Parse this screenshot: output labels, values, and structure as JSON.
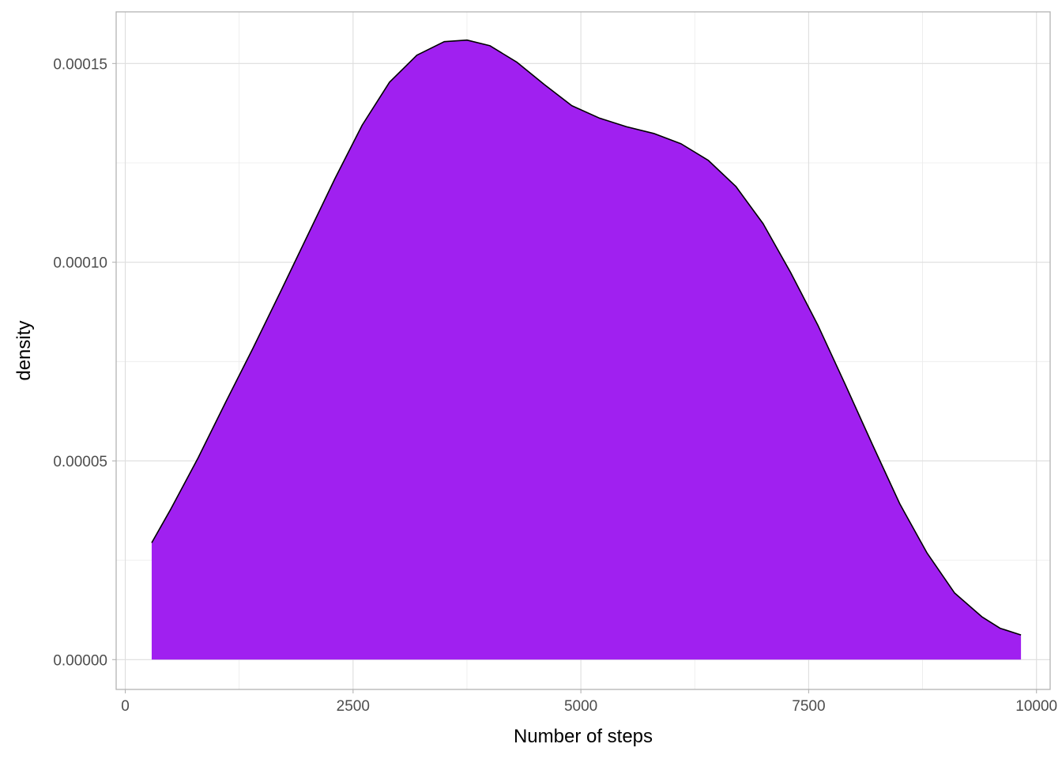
{
  "chart_data": {
    "type": "area",
    "title": "",
    "xlabel": "Number of steps",
    "ylabel": "density",
    "xlim": [
      -100,
      10150
    ],
    "ylim": [
      -7.5e-06,
      0.000163
    ],
    "x_ticks": [
      0,
      2500,
      5000,
      7500,
      10000
    ],
    "x_tick_labels": [
      "0",
      "2500",
      "5000",
      "7500",
      "10000"
    ],
    "y_ticks": [
      0,
      5e-05,
      0.0001,
      0.00015
    ],
    "y_tick_labels": [
      "0.00000",
      "0.00005",
      "0.00010",
      "0.00015"
    ],
    "grid": true,
    "legend": "none",
    "fill_color": "#A020F0",
    "line_color": "#000000",
    "series": [
      {
        "x": [
          290,
          500,
          800,
          1100,
          1400,
          1700,
          2000,
          2300,
          2600,
          2900,
          3200,
          3500,
          3750,
          4000,
          4300,
          4600,
          4900,
          5200,
          5500,
          5800,
          6100,
          6400,
          6700,
          7000,
          7300,
          7600,
          7900,
          8200,
          8500,
          8800,
          9100,
          9400,
          9600,
          9830
        ],
        "y": [
          2.94e-05,
          3.79e-05,
          5.08e-05,
          6.47e-05,
          7.83e-05,
          9.24e-05,
          0.0001067,
          0.000121,
          0.0001345,
          0.0001453,
          0.0001521,
          0.0001555,
          0.0001559,
          0.0001545,
          0.0001503,
          0.0001447,
          0.0001394,
          0.0001363,
          0.0001341,
          0.0001324,
          0.0001298,
          0.0001256,
          0.0001191,
          0.0001097,
          9.75e-05,
          8.42e-05,
          6.93e-05,
          5.41e-05,
          3.92e-05,
          2.68e-05,
          1.68e-05,
          1.08e-05,
          7.9e-06,
          6.2e-06
        ]
      }
    ]
  }
}
